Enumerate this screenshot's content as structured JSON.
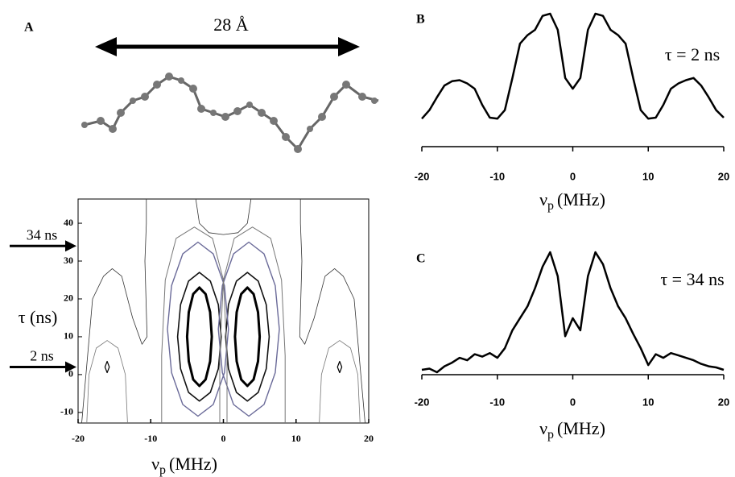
{
  "chart_data": [
    {
      "type": "contour",
      "panel": "A",
      "annotation": "28 Å",
      "xlabel": {
        "symbol": "ν",
        "subscript": "p",
        "unit": "(MHz)"
      },
      "ylabel": "τ (ns)",
      "xlim": [
        -20,
        20
      ],
      "xticks": [
        -20,
        -10,
        0,
        10,
        20
      ],
      "ylim": [
        -12.8,
        46.4
      ],
      "yticks": [
        -10,
        0,
        10,
        20,
        30,
        40
      ],
      "markers": [
        {
          "label": "34 ns",
          "y": 34
        },
        {
          "label": "2 ns",
          "y": 2
        }
      ],
      "contours": [
        {
          "color": "#000000",
          "closed": true,
          "x": [
            -1.6,
            -1.83,
            -2.45,
            -3.3,
            -4.15,
            -4.77,
            -5.0,
            -4.77,
            -4.15,
            -3.3,
            -2.45,
            -1.83
          ],
          "y": [
            10,
            16.5,
            21.3,
            23,
            21.3,
            16.5,
            10,
            3.5,
            -1.3,
            -3,
            -1.3,
            3.5
          ]
        },
        {
          "color": "#000000",
          "closed": true,
          "x": [
            5.0,
            4.77,
            4.15,
            3.3,
            2.45,
            1.83,
            1.6,
            1.83,
            2.45,
            3.3,
            4.15,
            4.77
          ],
          "y": [
            10,
            16.5,
            21.3,
            23,
            21.3,
            16.5,
            10,
            3.5,
            -1.3,
            -3,
            -1.3,
            3.5
          ]
        },
        {
          "color": "#111111",
          "closed": true,
          "x": [
            -0.3,
            -0.7,
            -1.8,
            -3.3,
            -4.8,
            -5.9,
            -6.3,
            -5.9,
            -4.8,
            -3.3,
            -1.8,
            -0.7
          ],
          "y": [
            10,
            18.5,
            24.7,
            27,
            24.7,
            18.5,
            10,
            1.5,
            -4.7,
            -7,
            -4.7,
            1.5
          ]
        },
        {
          "color": "#111111",
          "closed": true,
          "x": [
            6.3,
            5.9,
            4.8,
            3.3,
            1.8,
            0.7,
            0.3,
            0.7,
            1.8,
            3.3,
            4.8,
            5.9
          ],
          "y": [
            10,
            18.5,
            24.7,
            27,
            24.7,
            18.5,
            10,
            1.5,
            -4.7,
            -7,
            -4.7,
            1.5
          ]
        },
        {
          "color": "#6b6b99",
          "closed": true,
          "x": [
            0.7,
            0.14,
            -1.4,
            -3.5,
            -5.6,
            -7.14,
            -7.7,
            -7.14,
            -5.6,
            -3.5,
            -1.4,
            0.14
          ],
          "y": [
            12,
            23.5,
            31.9,
            35,
            31.9,
            23.5,
            12,
            0.5,
            -7.9,
            -11,
            -7.9,
            0.5
          ]
        },
        {
          "color": "#6b6b99",
          "closed": true,
          "x": [
            7.7,
            7.14,
            5.6,
            3.5,
            1.4,
            -0.14,
            -0.7,
            -0.14,
            1.4,
            3.5,
            5.6,
            7.14
          ],
          "y": [
            12,
            23.5,
            31.9,
            35,
            31.9,
            23.5,
            12,
            0.5,
            -7.9,
            -11,
            -7.9,
            0.5
          ]
        },
        {
          "color": "#777777",
          "closed": false,
          "x": [
            -8.5,
            -8.5,
            -8.0,
            -6.5,
            -4,
            -1.5,
            0,
            0.5,
            0.5
          ],
          "y": [
            -12.8,
            5,
            25,
            36,
            39,
            36,
            25,
            5,
            -12.8
          ]
        },
        {
          "color": "#777777",
          "closed": false,
          "x": [
            8.5,
            8.5,
            8.0,
            6.5,
            4,
            1.5,
            0,
            -0.5,
            -0.5
          ],
          "y": [
            -12.8,
            5,
            25,
            36,
            39,
            36,
            25,
            5,
            -12.8
          ]
        },
        {
          "color": "#333333",
          "closed": false,
          "x": [
            -19.5,
            -18,
            -16.5,
            -15.3,
            -14,
            -12.5,
            -11.2,
            -10.5,
            -10.8,
            -10.6,
            -10.6
          ],
          "y": [
            -12.8,
            20,
            26,
            28,
            26,
            15,
            8,
            10,
            30,
            40,
            46.4
          ]
        },
        {
          "color": "#333333",
          "closed": false,
          "x": [
            19.5,
            18,
            16.5,
            15.3,
            14,
            12.5,
            11.2,
            10.5,
            10.8,
            10.6,
            10.6
          ],
          "y": [
            -12.8,
            20,
            26,
            28,
            26,
            15,
            8,
            10,
            30,
            40,
            46.4
          ]
        },
        {
          "color": "#333333",
          "closed": false,
          "x": [
            -3.8,
            -3.3,
            -2,
            0,
            2,
            3.3,
            3.8
          ],
          "y": [
            46.4,
            40,
            37.5,
            37,
            37.5,
            40,
            46.4
          ]
        },
        {
          "color": "#777777",
          "closed": false,
          "x": [
            -18.8,
            -18.5,
            -17.5,
            -16,
            -14.5,
            -13.5,
            -13.2
          ],
          "y": [
            -12.8,
            0,
            7,
            9,
            7,
            0,
            -12.8
          ]
        },
        {
          "color": "#777777",
          "closed": false,
          "x": [
            18.8,
            18.5,
            17.5,
            16,
            14.5,
            13.5,
            13.2
          ],
          "y": [
            -12.8,
            0,
            7,
            9,
            7,
            0,
            -12.8
          ]
        },
        {
          "color": "#000000",
          "closed": true,
          "x": [
            -16.3,
            -16,
            -15.7,
            -16
          ],
          "y": [
            2,
            3.5,
            2,
            0.5
          ]
        },
        {
          "color": "#000000",
          "closed": true,
          "x": [
            15.7,
            16,
            16.3,
            16
          ],
          "y": [
            2,
            3.5,
            2,
            0.5
          ]
        }
      ]
    },
    {
      "type": "line",
      "panel": "B",
      "annotation": "τ = 2 ns",
      "xlabel": {
        "symbol": "ν",
        "subscript": "p",
        "unit": "(MHz)"
      },
      "xlim": [
        -20,
        20
      ],
      "xticks": [
        -20,
        -10,
        0,
        10,
        20
      ],
      "ylim": [
        0,
        1
      ],
      "color": "#000000",
      "x": [
        -20,
        -19,
        -18,
        -17,
        -16,
        -15,
        -14,
        -13,
        -12,
        -11,
        -10,
        -9,
        -8,
        -7,
        -6,
        -5,
        -4,
        -3,
        -2,
        -1,
        0,
        1,
        2,
        3,
        4,
        5,
        6,
        7,
        8,
        9,
        10,
        11,
        12,
        13,
        14,
        15,
        16,
        17,
        18,
        19,
        20
      ],
      "values": [
        0.02,
        0.1,
        0.22,
        0.33,
        0.37,
        0.38,
        0.35,
        0.3,
        0.15,
        0.03,
        0.02,
        0.1,
        0.4,
        0.72,
        0.8,
        0.85,
        0.98,
        1.0,
        0.85,
        0.4,
        0.3,
        0.4,
        0.85,
        1.0,
        0.98,
        0.85,
        0.8,
        0.72,
        0.4,
        0.1,
        0.02,
        0.03,
        0.15,
        0.3,
        0.35,
        0.38,
        0.4,
        0.33,
        0.22,
        0.1,
        0.03
      ]
    },
    {
      "type": "line",
      "panel": "C",
      "annotation": "τ = 34 ns",
      "xlabel": {
        "symbol": "ν",
        "subscript": "p",
        "unit": "(MHz)"
      },
      "xlim": [
        -20,
        20
      ],
      "xticks": [
        -20,
        -10,
        0,
        10,
        20
      ],
      "ylim": [
        0,
        1
      ],
      "color": "#000000",
      "x": [
        -20,
        -19,
        -18,
        -17,
        -16,
        -15,
        -14,
        -13,
        -12,
        -11,
        -10,
        -9,
        -8,
        -7,
        -6,
        -5,
        -4,
        -3,
        -2,
        -1,
        0,
        1,
        2,
        3,
        4,
        5,
        6,
        7,
        8,
        9,
        10,
        11,
        12,
        13,
        14,
        15,
        16,
        17,
        18,
        19,
        20
      ],
      "values": [
        0.02,
        0.03,
        0.0,
        0.05,
        0.08,
        0.12,
        0.1,
        0.15,
        0.13,
        0.16,
        0.12,
        0.2,
        0.35,
        0.45,
        0.55,
        0.7,
        0.88,
        1.0,
        0.8,
        0.3,
        0.45,
        0.35,
        0.8,
        1.0,
        0.9,
        0.7,
        0.55,
        0.45,
        0.32,
        0.2,
        0.06,
        0.15,
        0.12,
        0.16,
        0.14,
        0.12,
        0.1,
        0.07,
        0.05,
        0.04,
        0.02
      ]
    }
  ]
}
